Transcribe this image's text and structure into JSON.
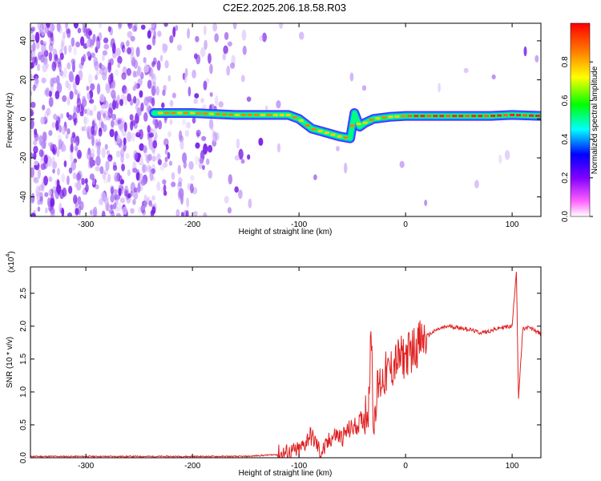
{
  "title": "C2E2.2025.206.18.58.R03",
  "chart_data": [
    {
      "type": "heatmap",
      "xlabel": "Height of straight line (km)",
      "ylabel": "Frequency (Hz)",
      "xlim": [
        -352,
        127
      ],
      "ylim": [
        -50,
        49
      ],
      "xticks": [
        -300,
        -200,
        -100,
        0,
        100
      ],
      "yticks": [
        -40,
        -20,
        0,
        20,
        40
      ],
      "colorbar": {
        "label": "Normalized spectral amplitude",
        "range": [
          0.0,
          1.0
        ],
        "ticks": [
          "0.0",
          "0.2",
          "0.4",
          "0.6",
          "0.8"
        ],
        "colors": [
          "#ffffff",
          "#ff00ff",
          "#8000ff",
          "#0000ff",
          "#00ffff",
          "#00ff00",
          "#ffff00",
          "#ff8000",
          "#ff0000"
        ]
      },
      "ridge": {
        "description_points_x": [
          -236,
          -200,
          -160,
          -128,
          -110,
          -100,
          -88,
          -75,
          -62,
          -52,
          -48,
          -43,
          -38,
          -30,
          -15,
          0,
          40,
          80,
          100,
          127
        ],
        "description_points_y": [
          3,
          3,
          2,
          2,
          2,
          0,
          -5,
          -7,
          -9,
          -10,
          3,
          -4,
          -2,
          0,
          1,
          1.5,
          1.5,
          1.5,
          2,
          1.5
        ]
      }
    },
    {
      "type": "line",
      "xlabel": "Height of straight line (km)",
      "ylabel": "SNR (10 * v/v)",
      "multiplier": "(x10",
      "multiplier_exp": "4",
      ")": "",
      "xlim": [
        -352,
        127
      ],
      "ylim": [
        0,
        2.9
      ],
      "xticks": [
        -300,
        -200,
        -100,
        0,
        100
      ],
      "yticks": [
        0.0,
        0.5,
        1.0,
        1.5,
        2.0,
        2.5
      ],
      "color": "#e02020",
      "x": [
        -352,
        -300,
        -250,
        -200,
        -150,
        -120,
        -100,
        -95,
        -90,
        -85,
        -80,
        -75,
        -70,
        -65,
        -60,
        -55,
        -50,
        -45,
        -40,
        -35,
        -32,
        -30,
        -28,
        -25,
        -20,
        -15,
        -10,
        -5,
        0,
        10,
        20,
        30,
        40,
        50,
        60,
        70,
        80,
        90,
        100,
        104,
        106,
        110,
        115,
        120,
        127
      ],
      "y": [
        0.02,
        0.02,
        0.02,
        0.02,
        0.02,
        0.05,
        0.1,
        0.2,
        0.35,
        0.25,
        0.08,
        0.15,
        0.3,
        0.35,
        0.3,
        0.4,
        0.45,
        0.5,
        0.6,
        0.8,
        1.9,
        0.4,
        0.9,
        1.1,
        1.25,
        1.3,
        1.45,
        1.5,
        1.55,
        1.7,
        1.85,
        1.95,
        2.0,
        1.98,
        1.95,
        1.9,
        1.93,
        1.98,
        2.0,
        2.85,
        0.9,
        1.95,
        1.98,
        1.95,
        1.88
      ]
    }
  ]
}
